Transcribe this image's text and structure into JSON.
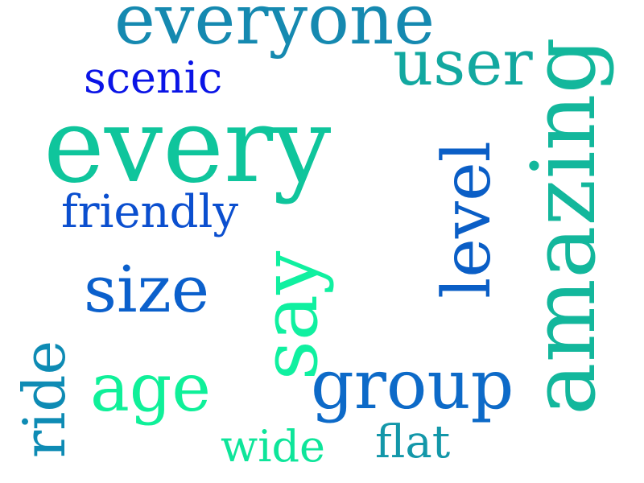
{
  "words": [
    {
      "text": "everyone",
      "color": "#1589b0"
    },
    {
      "text": "user",
      "color": "#12a8a0"
    },
    {
      "text": "scenic",
      "color": "#0a14e6"
    },
    {
      "text": "every",
      "color": "#0fc59c"
    },
    {
      "text": "amazing",
      "color": "#13b79c"
    },
    {
      "text": "level",
      "color": "#0a5ec6"
    },
    {
      "text": "friendly",
      "color": "#0b4fcf"
    },
    {
      "text": "size",
      "color": "#0b60cc"
    },
    {
      "text": "say",
      "color": "#10f0a0"
    },
    {
      "text": "ride",
      "color": "#0e8bb4"
    },
    {
      "text": "age",
      "color": "#0ff099"
    },
    {
      "text": "group",
      "color": "#0d6ac8"
    },
    {
      "text": "wide",
      "color": "#0ee59a"
    },
    {
      "text": "flat",
      "color": "#1397a9"
    }
  ]
}
